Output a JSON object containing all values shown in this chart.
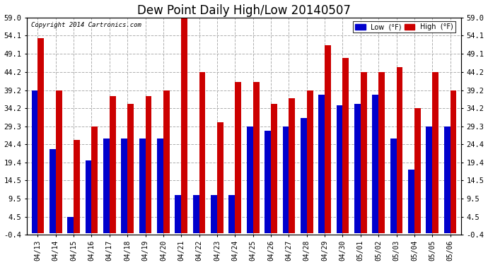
{
  "title": "Dew Point Daily High/Low 20140507",
  "copyright": "Copyright 2014 Cartronics.com",
  "dates": [
    "04/13",
    "04/14",
    "04/15",
    "04/16",
    "04/17",
    "04/18",
    "04/19",
    "04/20",
    "04/21",
    "04/22",
    "04/23",
    "04/24",
    "04/25",
    "04/26",
    "04/27",
    "04/28",
    "04/29",
    "04/30",
    "05/01",
    "05/02",
    "05/03",
    "05/04",
    "05/05",
    "05/06"
  ],
  "low": [
    39.2,
    23.0,
    4.5,
    20.0,
    26.0,
    26.0,
    26.0,
    26.0,
    10.5,
    10.5,
    10.5,
    10.5,
    29.3,
    28.0,
    29.3,
    31.5,
    38.0,
    35.0,
    35.5,
    38.0,
    26.0,
    17.5,
    29.3,
    29.3
  ],
  "high": [
    53.5,
    39.2,
    25.5,
    29.3,
    37.5,
    35.5,
    37.5,
    39.2,
    59.0,
    44.2,
    30.5,
    41.5,
    41.5,
    35.5,
    37.0,
    39.2,
    51.5,
    48.0,
    44.2,
    44.2,
    45.5,
    34.2,
    44.2,
    39.2
  ],
  "ylim_min": -0.4,
  "ylim_max": 59.0,
  "yticks": [
    -0.4,
    4.5,
    9.5,
    14.5,
    19.4,
    24.4,
    29.3,
    34.2,
    39.2,
    44.2,
    49.1,
    54.1,
    59.0
  ],
  "bar_color_low": "#0000cc",
  "bar_color_high": "#cc0000",
  "background_color": "#ffffff",
  "grid_color": "#b0b0b0",
  "title_fontsize": 12,
  "bar_width": 0.35
}
